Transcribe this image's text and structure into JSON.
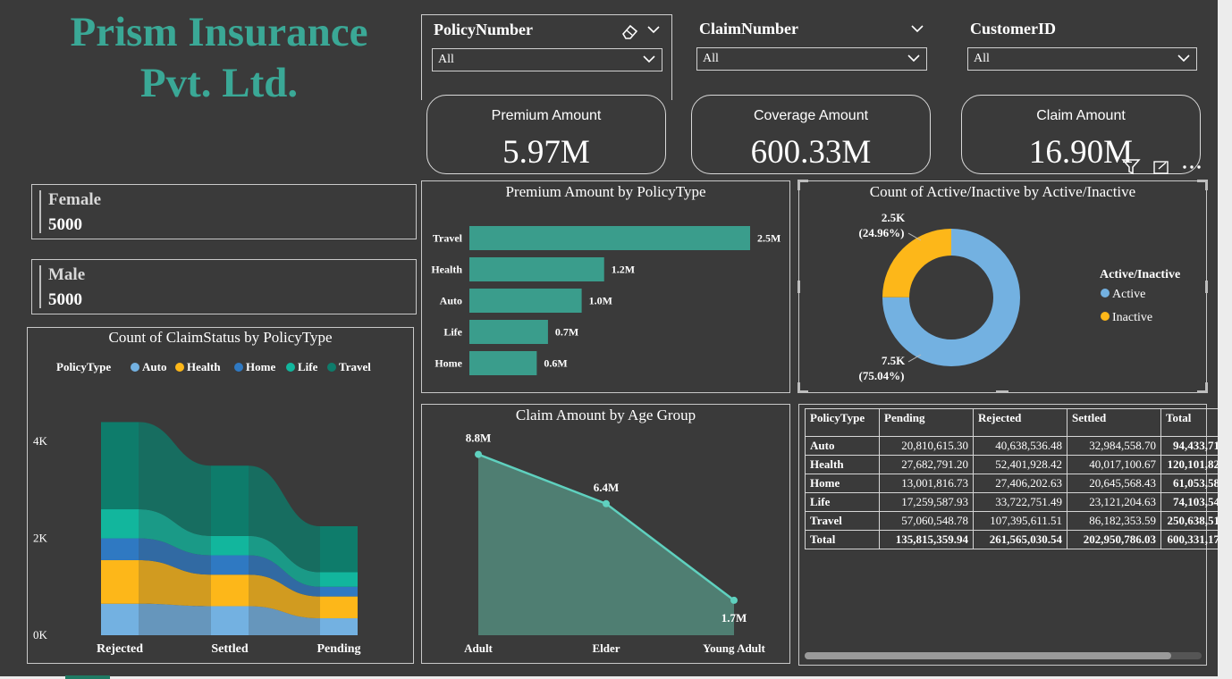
{
  "header": {
    "title_line1": "Prism Insurance",
    "title_line2": "Pvt. Ltd."
  },
  "slicers": [
    {
      "label": "PolicyNumber",
      "value": "All"
    },
    {
      "label": "ClaimNumber",
      "value": "All"
    },
    {
      "label": "CustomerID",
      "value": "All"
    }
  ],
  "cards": [
    {
      "label": "Premium Amount",
      "value": "5.97M"
    },
    {
      "label": "Coverage Amount",
      "value": "600.33M"
    },
    {
      "label": "Claim Amount",
      "value": "16.90M"
    }
  ],
  "gender": [
    {
      "label": "Female",
      "value": "5000"
    },
    {
      "label": "Male",
      "value": "5000"
    }
  ],
  "colors": {
    "auto": "#73b1e1",
    "health": "#fdb719",
    "home": "#2f79c2",
    "life": "#12b69d",
    "travel": "#0e7c6b",
    "active": "#73b1e1",
    "inactive": "#fdb719",
    "bar": "#3a9d8c",
    "line": "#5fd1bf"
  },
  "chart_data": [
    {
      "type": "area",
      "title": "Count of ClaimStatus by PolicyType",
      "legend_title": "PolicyType",
      "legend_position": "top",
      "categories": [
        "Rejected",
        "Settled",
        "Pending"
      ],
      "yticks": [
        "0K",
        "2K",
        "4K"
      ],
      "ylim": [
        0,
        4500
      ],
      "series": [
        {
          "name": "Auto",
          "values": [
            650,
            600,
            350
          ]
        },
        {
          "name": "Health",
          "values": [
            900,
            650,
            450
          ]
        },
        {
          "name": "Home",
          "values": [
            450,
            400,
            200
          ]
        },
        {
          "name": "Life",
          "values": [
            600,
            400,
            300
          ]
        },
        {
          "name": "Travel",
          "values": [
            1800,
            1450,
            950
          ]
        }
      ]
    },
    {
      "type": "bar",
      "title": "Premium Amount by PolicyType",
      "categories": [
        "Travel",
        "Health",
        "Auto",
        "Life",
        "Home"
      ],
      "values": [
        2.5,
        1.2,
        1.0,
        0.7,
        0.6
      ],
      "value_labels": [
        "2.5M",
        "1.2M",
        "1.0M",
        "0.7M",
        "0.6M"
      ],
      "xlim": [
        0,
        2.5
      ]
    },
    {
      "type": "pie",
      "title": "Count of Active/Inactive by Active/Inactive",
      "legend_title": "Active/Inactive",
      "legend_position": "right",
      "categories": [
        "Active",
        "Inactive"
      ],
      "values": [
        75.04,
        24.96
      ],
      "value_labels": [
        "7.5K",
        "2.5K"
      ],
      "percent_labels": [
        "(75.04%)",
        "(24.96%)"
      ]
    },
    {
      "type": "line",
      "title": "Claim Amount by Age Group",
      "categories": [
        "Adult",
        "Elder",
        "Young Adult"
      ],
      "values": [
        8.8,
        6.4,
        1.7
      ],
      "value_labels": [
        "8.8M",
        "6.4M",
        "1.7M"
      ],
      "ylim": [
        0,
        10
      ]
    },
    {
      "type": "table",
      "columns": [
        "PolicyType",
        "Pending",
        "Rejected",
        "Settled",
        "Total"
      ],
      "rows": [
        [
          "Auto",
          "20,810,615.30",
          "40,638,536.48",
          "32,984,558.70",
          "94,433,71"
        ],
        [
          "Health",
          "27,682,791.20",
          "52,401,928.42",
          "40,017,100.67",
          "120,101,82"
        ],
        [
          "Home",
          "13,001,816.73",
          "27,406,202.63",
          "20,645,568.43",
          "61,053,58"
        ],
        [
          "Life",
          "17,259,587.93",
          "33,722,751.49",
          "23,121,204.63",
          "74,103,54"
        ],
        [
          "Travel",
          "57,060,548.78",
          "107,395,611.51",
          "86,182,353.59",
          "250,638,51"
        ],
        [
          "Total",
          "135,815,359.94",
          "261,565,030.54",
          "202,950,786.03",
          "600,331,17"
        ]
      ]
    }
  ]
}
